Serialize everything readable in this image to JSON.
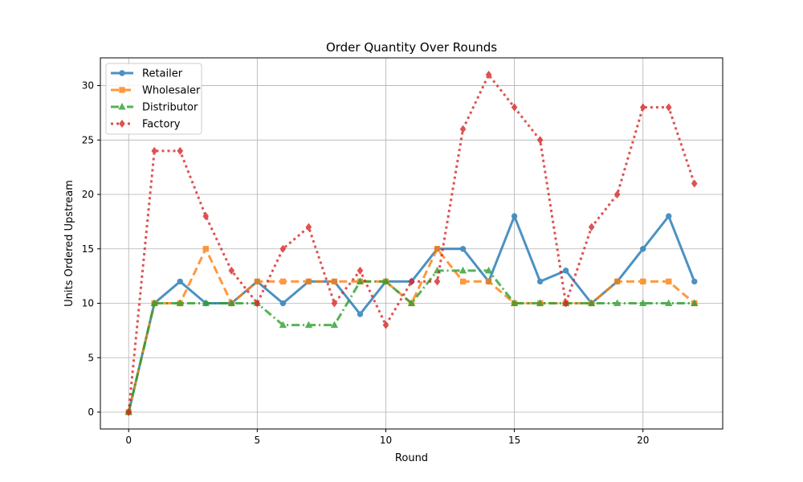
{
  "chart_data": {
    "type": "line",
    "title": "Order Quantity Over Rounds",
    "xlabel": "Round",
    "ylabel": "Units Ordered Upstream",
    "xlim": [
      -1.1,
      23.1
    ],
    "ylim": [
      -1.55,
      32.55
    ],
    "xticks": [
      0,
      5,
      10,
      15,
      20
    ],
    "yticks": [
      0,
      5,
      10,
      15,
      20,
      25,
      30
    ],
    "grid": true,
    "legend_position": "top-left",
    "x": [
      0,
      1,
      2,
      3,
      4,
      5,
      6,
      7,
      8,
      9,
      10,
      11,
      12,
      13,
      14,
      15,
      16,
      17,
      18,
      19,
      20,
      21,
      22
    ],
    "series": [
      {
        "name": "Retailer",
        "color": "#1f77b4",
        "marker": "circle",
        "linestyle": "solid",
        "values": [
          0,
          10,
          12,
          10,
          10,
          12,
          10,
          12,
          12,
          9,
          12,
          12,
          15,
          15,
          12,
          18,
          12,
          13,
          10,
          12,
          15,
          18,
          12
        ]
      },
      {
        "name": "Wholesaler",
        "color": "#ff7f0e",
        "marker": "square",
        "linestyle": "dashed",
        "values": [
          0,
          10,
          10,
          15,
          10,
          12,
          12,
          12,
          12,
          12,
          12,
          10,
          15,
          12,
          12,
          10,
          10,
          10,
          10,
          12,
          12,
          12,
          10
        ]
      },
      {
        "name": "Distributor",
        "color": "#2ca02c",
        "marker": "triangle",
        "linestyle": "dashdot",
        "values": [
          0,
          10,
          10,
          10,
          10,
          10,
          8,
          8,
          8,
          12,
          12,
          10,
          13,
          13,
          13,
          10,
          10,
          10,
          10,
          10,
          10,
          10,
          10
        ]
      },
      {
        "name": "Factory",
        "color": "#d62728",
        "marker": "diamond",
        "linestyle": "dotted",
        "values": [
          0,
          24,
          24,
          18,
          13,
          10,
          15,
          17,
          10,
          13,
          8,
          12,
          12,
          26,
          31,
          28,
          25,
          10,
          17,
          20,
          28,
          28,
          21
        ]
      }
    ]
  }
}
